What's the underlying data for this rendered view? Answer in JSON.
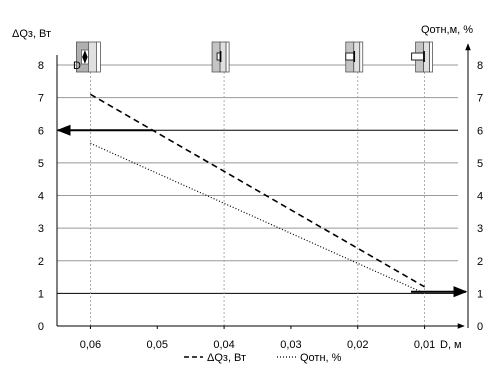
{
  "chart_data": {
    "type": "line",
    "title": "",
    "xlabel": "D, м",
    "ylabel_left": "ΔQз, Вт",
    "ylabel_right": "Qотн,м, %",
    "x_ticks": [
      0.06,
      0.05,
      0.04,
      0.03,
      0.02,
      0.01
    ],
    "x_tick_labels": [
      "0,06",
      "0,05",
      "0,04",
      "0,03",
      "0,02",
      "0,01"
    ],
    "x_range": [
      0.065,
      0.005
    ],
    "y_left_ticks": [
      0,
      1,
      2,
      3,
      4,
      5,
      6,
      7,
      8
    ],
    "y_right_ticks": [
      0,
      1,
      2,
      3,
      4,
      5,
      6,
      7,
      8
    ],
    "ylim": [
      0,
      8
    ],
    "grid": "horizontal",
    "legend_position": "bottom",
    "series": [
      {
        "name": "ΔQз, Вт",
        "style": "dashed",
        "x": [
          0.06,
          0.01
        ],
        "y": [
          7.1,
          1.2
        ]
      },
      {
        "name": "Qотн, %",
        "style": "dotted",
        "x": [
          0.06,
          0.01
        ],
        "y": [
          5.6,
          1.0
        ]
      }
    ],
    "annotations": {
      "left_arrow_label": "",
      "right_arrow_label": "",
      "dimension_label": "D"
    }
  }
}
